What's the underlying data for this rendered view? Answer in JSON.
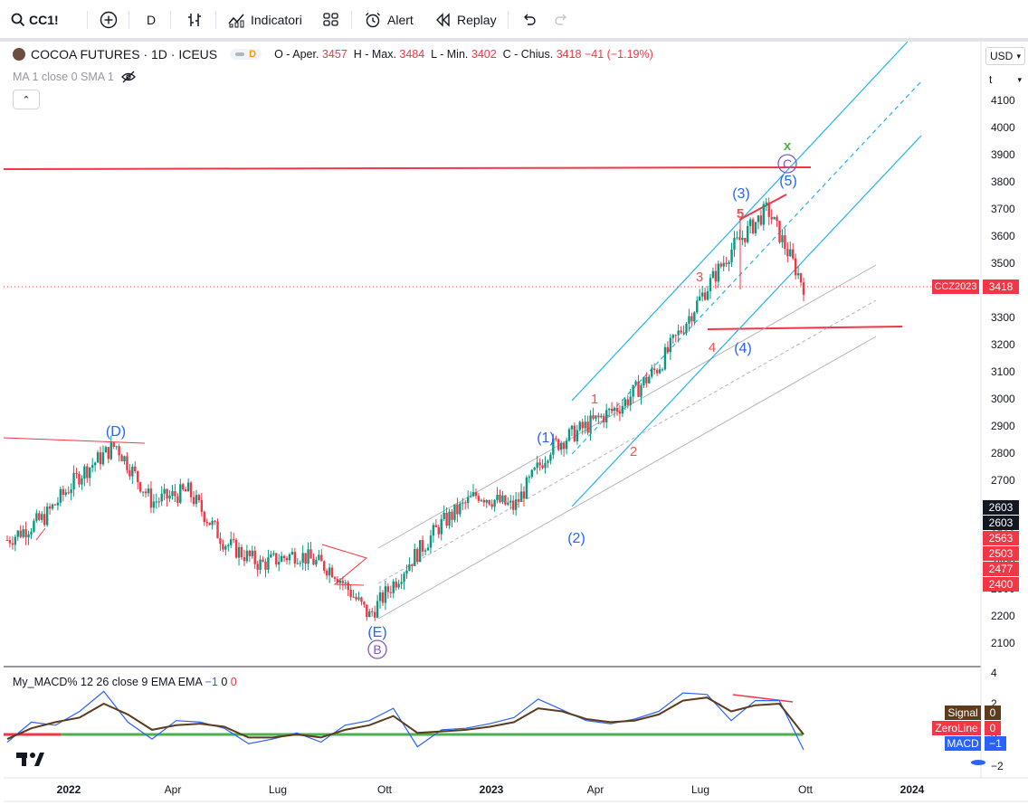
{
  "toolbar": {
    "symbol": "CC1!",
    "interval": "D",
    "indicators_label": "Indicatori",
    "alert_label": "Alert",
    "replay_label": "Replay"
  },
  "legend": {
    "title": "COCOA FUTURES · 1D · ICEUS",
    "flag": "D",
    "open_label": "O - Aper.",
    "open": "3457",
    "high_label": "H - Max.",
    "high": "3484",
    "low_label": "L - Min.",
    "low": "3402",
    "close_label": "C - Chius.",
    "close": "3418",
    "change": "−41 (−1.19%)",
    "ma": "MA 1 close 0 SMA 1"
  },
  "macd_legend": {
    "name": "My_MACD% 12 26 close 9 EMA EMA",
    "v1": "−1",
    "v2": "0",
    "v3": "0"
  },
  "price_scale": {
    "currency": "USD",
    "unit": "t",
    "ticks": [
      "4100",
      "4000",
      "3900",
      "3800",
      "3700",
      "3600",
      "3500",
      "3400",
      "3300",
      "3200",
      "3100",
      "3000",
      "2900",
      "2800",
      "2700",
      "2600",
      "2500",
      "2400",
      "2300",
      "2200",
      "2100"
    ],
    "current_symbol": "CCZ2023",
    "current_value": "3418",
    "side_badges": [
      "2603",
      "2603",
      "2563",
      "2503",
      "2477",
      "2400"
    ]
  },
  "macd_scale": {
    "ticks": [
      "4",
      "2",
      "0",
      "−2"
    ],
    "signal_label": "Signal",
    "signal_value": "0",
    "zero_label": "ZeroLine",
    "zero_value": "0",
    "macd_label": "MACD",
    "macd_value": "−1"
  },
  "time_axis": {
    "labels": [
      "2022",
      "Apr",
      "Lug",
      "Ott",
      "2023",
      "Apr",
      "Lug",
      "Ott",
      "2024"
    ]
  },
  "waves": {
    "D": "(D)",
    "E": "(E)",
    "B": "B",
    "C": "C",
    "x": "x",
    "w1": "(1)",
    "w2": "(2)",
    "w3": "(3)",
    "w4": "(4)",
    "w5": "(5)",
    "s1": "1",
    "s2": "2",
    "s3": "3",
    "s4": "4",
    "s5": "5"
  },
  "colors": {
    "up": "#089981",
    "down": "#f23645",
    "channel_blue": "#22b5e6",
    "wave_blue": "#2962ff",
    "wave_red": "#f05350",
    "wave_purple": "#7e57c2",
    "green": "#4caf50"
  },
  "chart_data": {
    "type": "candlestick",
    "title": "COCOA FUTURES · 1D · ICEUS",
    "ylim": [
      2050,
      4250
    ],
    "x": [
      "2021-11",
      "2022-01",
      "2022-02",
      "2022-03",
      "2022-04",
      "2022-05",
      "2022-06",
      "2022-07",
      "2022-08",
      "2022-09",
      "2022-10",
      "2022-11",
      "2022-12",
      "2023-01",
      "2023-02",
      "2023-03",
      "2023-04",
      "2023-05",
      "2023-06",
      "2023-07",
      "2023-08",
      "2023-09",
      "2023-10-02"
    ],
    "close": [
      2480,
      2560,
      2720,
      2830,
      2620,
      2660,
      2470,
      2390,
      2430,
      2370,
      2200,
      2380,
      2540,
      2650,
      2600,
      2820,
      2900,
      2980,
      3120,
      3340,
      3550,
      3700,
      3418
    ],
    "macd_ylim": [
      -3,
      4.5
    ],
    "macd_series": [
      {
        "name": "MACD",
        "values": [
          -0.5,
          0.8,
          0.6,
          1.5,
          2.8,
          0.8,
          -0.3,
          0.9,
          0.8,
          0.4,
          -0.6,
          -0.3,
          0.1,
          -0.5,
          0.6,
          0.9,
          1.7,
          -0.8,
          0.3,
          0.4,
          0.7,
          1.1,
          2.3,
          1.6,
          0.9,
          0.7,
          1.0,
          1.5,
          2.7,
          2.6,
          0.9,
          2.2,
          2.2,
          -1.0
        ]
      },
      {
        "name": "Signal",
        "values": [
          -0.3,
          0.4,
          0.8,
          1.1,
          2.0,
          1.3,
          0.3,
          0.6,
          0.7,
          0.5,
          -0.2,
          -0.2,
          0.0,
          -0.2,
          0.3,
          0.6,
          1.2,
          0.1,
          0.2,
          0.3,
          0.5,
          0.8,
          1.7,
          1.5,
          1.0,
          0.8,
          0.9,
          1.3,
          2.2,
          2.4,
          1.5,
          1.9,
          2.0,
          0.0
        ]
      }
    ]
  }
}
